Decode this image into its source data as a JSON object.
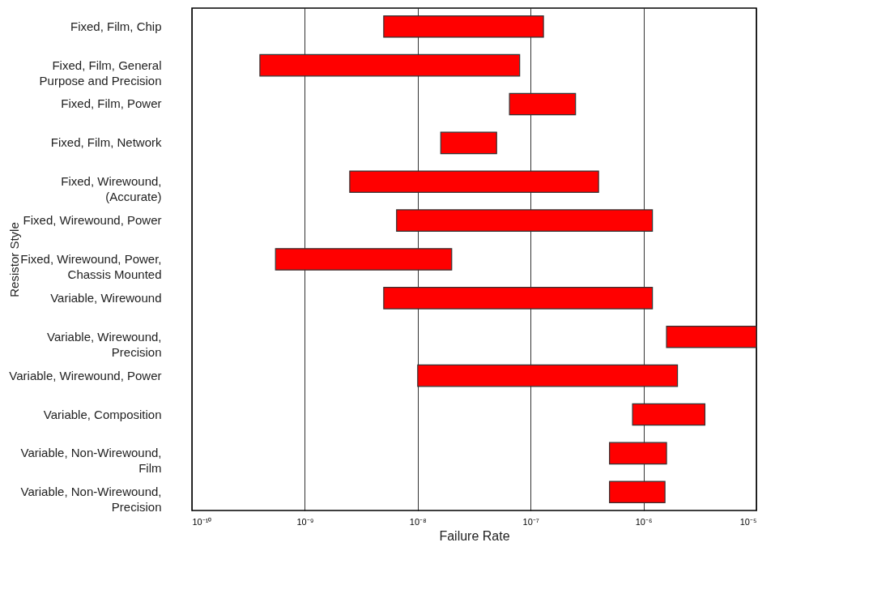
{
  "chart_data": {
    "type": "bar",
    "orientation": "horizontal",
    "xlabel": "Failure Rate",
    "ylabel": "Resistor Style",
    "categories": [
      "Fixed, Film, Chip",
      "Fixed, Film, General Purpose and Precision",
      "Fixed, Film, Power",
      "Fixed, Film, Network",
      "Fixed, Wirewound, (Accurate)",
      "Fixed, Wirewound, Power",
      "Fixed, Wirewound, Power, Chassis Mounted",
      "Variable, Wirewound",
      "Variable, Wirewound, Precision",
      "Variable, Wirewound, Power",
      "Variable, Composition",
      "Variable, Non-Wirewound, Film",
      "Variable, Non-Wirewound, Precision"
    ],
    "base": [
      5e-09,
      4e-10,
      6.5e-08,
      1.6e-08,
      2.5e-09,
      6.5e-09,
      5.5e-10,
      5e-09,
      1.6e-06,
      1e-08,
      8e-07,
      5e-07,
      5e-07
    ],
    "values": [
      1.25e-07,
      7.96e-08,
      1.85e-07,
      3.4e-08,
      3.975e-07,
      1.1935e-06,
      1.945e-08,
      1.195e-06,
      8.4e-06,
      1.99e-06,
      2.7e-06,
      1.1e-06,
      1.05e-06
    ],
    "color": "#ff0000",
    "log": "x",
    "xlim": [
      1e-10,
      1e-05
    ],
    "xticks": [
      {
        "value": 1e-10,
        "label": "10⁻¹⁰"
      },
      {
        "value": 1e-09,
        "label": "10⁻⁹"
      },
      {
        "value": 1e-08,
        "label": "10⁻⁸"
      },
      {
        "value": 1e-07,
        "label": "10⁻⁷"
      },
      {
        "value": 1e-06,
        "label": "10⁻⁶"
      },
      {
        "value": 1e-05,
        "label": "10⁻⁵"
      }
    ],
    "grid": "x"
  }
}
